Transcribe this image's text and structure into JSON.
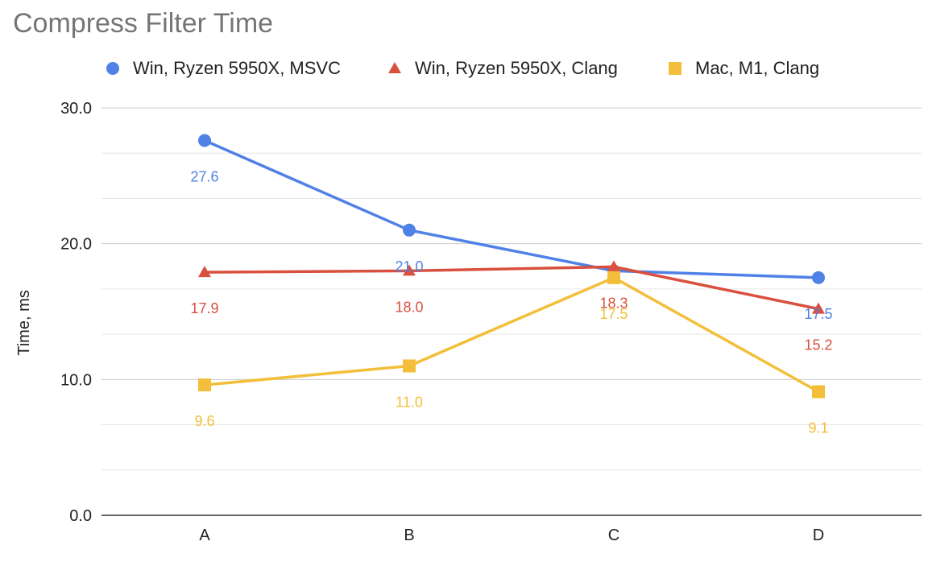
{
  "chart_data": {
    "type": "line",
    "title": "Compress Filter Time",
    "xlabel": "",
    "ylabel": "Time, ms",
    "categories": [
      "A",
      "B",
      "C",
      "D"
    ],
    "ylim": [
      0,
      30
    ],
    "y_ticks": [
      "0.0",
      "10.0",
      "20.0",
      "30.0"
    ],
    "grid": true,
    "legend_position": "top",
    "series": [
      {
        "name": "Win, Ryzen 5950X, MSVC",
        "values": [
          27.6,
          21.0,
          18.0,
          17.5
        ],
        "labels": [
          "27.6",
          "21.0",
          "",
          "17.5"
        ],
        "color": "#4f81e6",
        "marker": "circle"
      },
      {
        "name": "Win, Ryzen 5950X, Clang",
        "values": [
          17.9,
          18.0,
          18.3,
          15.2
        ],
        "labels": [
          "17.9",
          "18.0",
          "18.3",
          "15.2"
        ],
        "color": "#d9503f",
        "marker": "triangle"
      },
      {
        "name": "Mac, M1, Clang",
        "values": [
          9.6,
          11.0,
          17.5,
          9.1
        ],
        "labels": [
          "9.6",
          "11.0",
          "17.5",
          "9.1"
        ],
        "color": "#f3bf3a",
        "marker": "square"
      }
    ]
  }
}
